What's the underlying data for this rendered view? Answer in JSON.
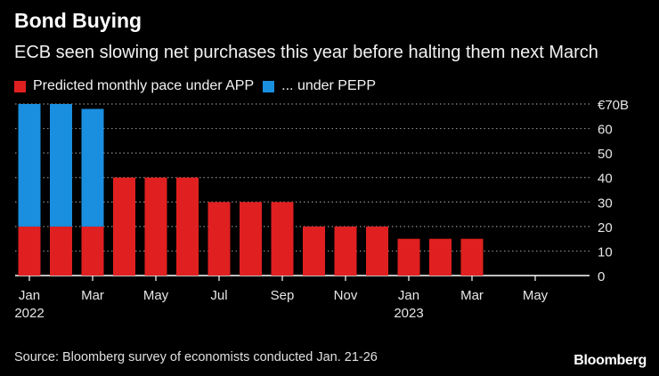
{
  "title": "Bond Buying",
  "subtitle": "ECB seen slowing net purchases this year before halting them next March",
  "legend": [
    {
      "label": "Predicted monthly pace under APP",
      "color": "#e02020"
    },
    {
      "label": "... under PEPP",
      "color": "#1a8fe0"
    }
  ],
  "source": "Source: Bloomberg survey of economists conducted Jan. 21-26",
  "brand": "Bloomberg",
  "chart_data": {
    "type": "bar",
    "stacked": true,
    "title": "Bond Buying",
    "categories": [
      "Jan 2022",
      "Feb 2022",
      "Mar 2022",
      "Apr 2022",
      "May 2022",
      "Jun 2022",
      "Jul 2022",
      "Aug 2022",
      "Sep 2022",
      "Oct 2022",
      "Nov 2022",
      "Dec 2022",
      "Jan 2023",
      "Feb 2023",
      "Mar 2023",
      "Apr 2023",
      "May 2023",
      "Jun 2023"
    ],
    "series": [
      {
        "name": "Predicted monthly pace under APP",
        "color": "#e02020",
        "values": [
          20,
          20,
          20,
          40,
          40,
          40,
          30,
          30,
          30,
          20,
          20,
          20,
          15,
          15,
          15,
          0,
          0,
          0
        ]
      },
      {
        "name": "... under PEPP",
        "color": "#1a8fe0",
        "values": [
          50,
          50,
          48,
          0,
          0,
          0,
          0,
          0,
          0,
          0,
          0,
          0,
          0,
          0,
          0,
          0,
          0,
          0
        ]
      }
    ],
    "x_ticks": [
      {
        "index": 0,
        "label": "Jan",
        "sublabel": "2022"
      },
      {
        "index": 2,
        "label": "Mar",
        "sublabel": ""
      },
      {
        "index": 4,
        "label": "May",
        "sublabel": ""
      },
      {
        "index": 6,
        "label": "Jul",
        "sublabel": ""
      },
      {
        "index": 8,
        "label": "Sep",
        "sublabel": ""
      },
      {
        "index": 10,
        "label": "Nov",
        "sublabel": ""
      },
      {
        "index": 12,
        "label": "Jan",
        "sublabel": "2023"
      },
      {
        "index": 14,
        "label": "Mar",
        "sublabel": ""
      },
      {
        "index": 16,
        "label": "May",
        "sublabel": ""
      }
    ],
    "y_ticks": [
      {
        "value": 0,
        "label": "0"
      },
      {
        "value": 10,
        "label": "10"
      },
      {
        "value": 20,
        "label": "20"
      },
      {
        "value": 30,
        "label": "30"
      },
      {
        "value": 40,
        "label": "40"
      },
      {
        "value": 50,
        "label": "50"
      },
      {
        "value": 60,
        "label": "60"
      },
      {
        "value": 70,
        "label": "€70B"
      }
    ],
    "ylim": [
      0,
      70
    ],
    "ylabel_position": "right",
    "grid": true
  }
}
